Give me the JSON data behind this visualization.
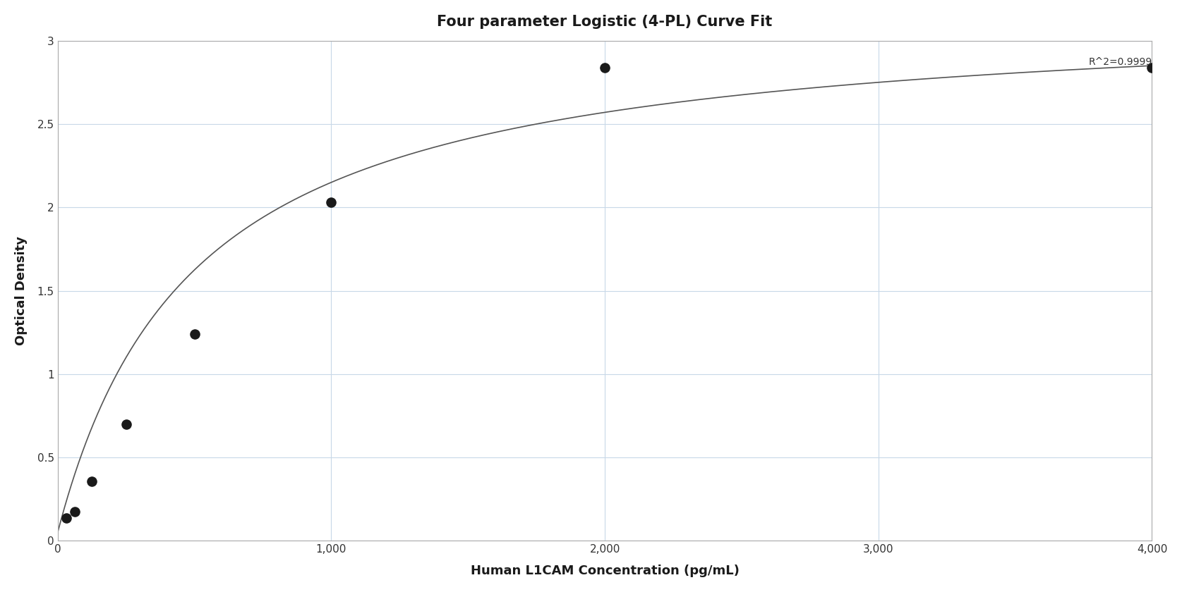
{
  "title": "Four parameter Logistic (4-PL) Curve Fit",
  "xlabel": "Human L1CAM Concentration (pg/mL)",
  "ylabel": "Optical Density",
  "x_data": [
    31.25,
    62.5,
    125,
    250,
    500,
    1000,
    2000,
    4000
  ],
  "y_data": [
    0.138,
    0.175,
    0.355,
    0.698,
    1.24,
    2.03,
    2.84,
    2.84
  ],
  "xlim": [
    0,
    4000
  ],
  "ylim": [
    0,
    3.0
  ],
  "x_ticks": [
    0,
    1000,
    2000,
    3000,
    4000
  ],
  "x_tick_labels": [
    "0",
    "1,000",
    "2,000",
    "3,000",
    "4,000"
  ],
  "y_ticks": [
    0,
    0.5,
    1.0,
    1.5,
    2.0,
    2.5,
    3.0
  ],
  "r_squared": "R^2=0.9999",
  "point_color": "#1a1a1a",
  "curve_color": "#555555",
  "grid_color": "#c8d8e8",
  "background_color": "#ffffff",
  "title_fontsize": 15,
  "label_fontsize": 13,
  "tick_fontsize": 11,
  "annotation_fontsize": 10
}
